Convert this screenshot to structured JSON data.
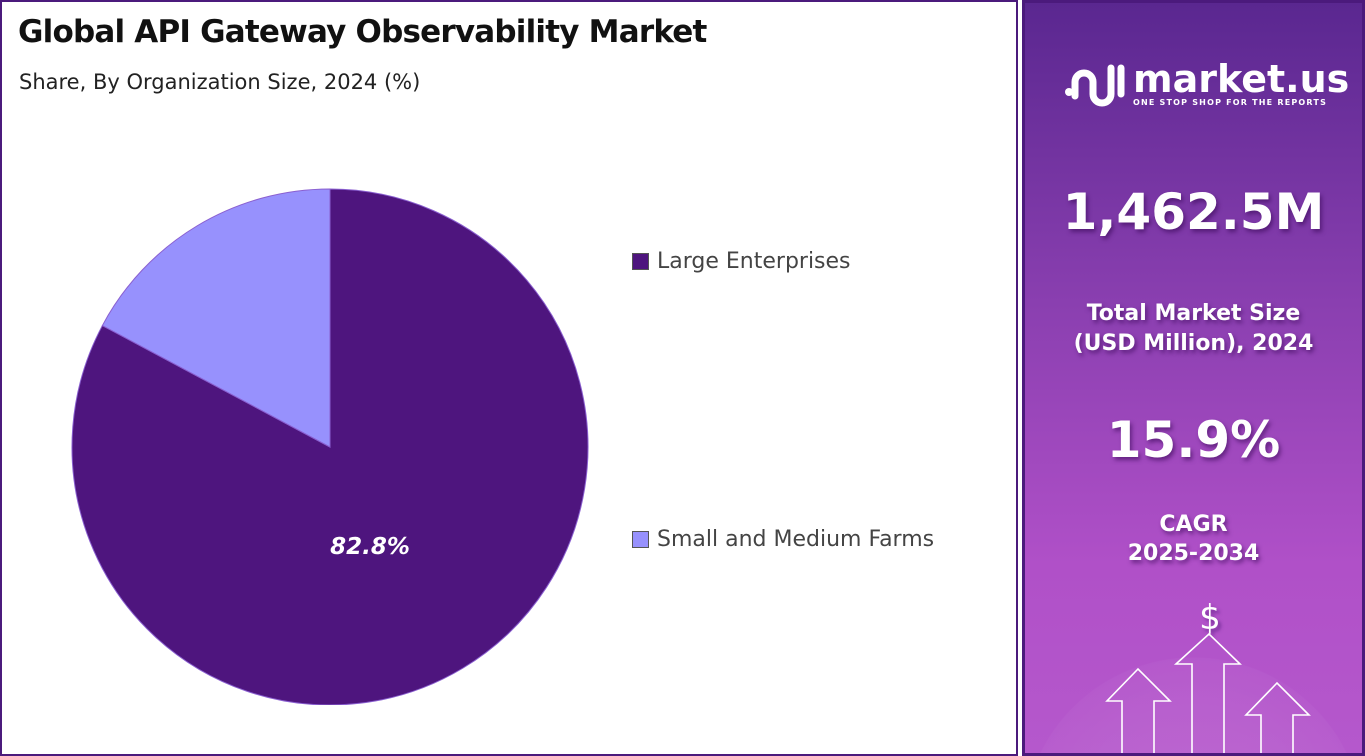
{
  "title": "Global API Gateway Observability Market",
  "subtitle": "Share, By Organization Size, 2024 (%)",
  "chart_data": {
    "type": "pie",
    "title": "Global API Gateway Observability Market",
    "subtitle": "Share, By Organization Size, 2024 (%)",
    "categories": [
      "Large Enterprises",
      "Small and Medium Farms"
    ],
    "values": [
      82.8,
      17.2
    ],
    "colors": [
      "#4e157e",
      "#9791fd"
    ],
    "data_labels": [
      "82.8%",
      ""
    ],
    "legend_position": "right"
  },
  "panel": {
    "logo_name": "market.us",
    "logo_tagline": "ONE STOP SHOP FOR THE REPORTS",
    "market_size": "1,462.5M",
    "market_size_label_1": "Total Market Size",
    "market_size_label_2": "(USD Million), 2024",
    "cagr": "15.9%",
    "cagr_label_1": "CAGR",
    "cagr_label_2": "2025-2034",
    "dollar_icon": "$"
  }
}
